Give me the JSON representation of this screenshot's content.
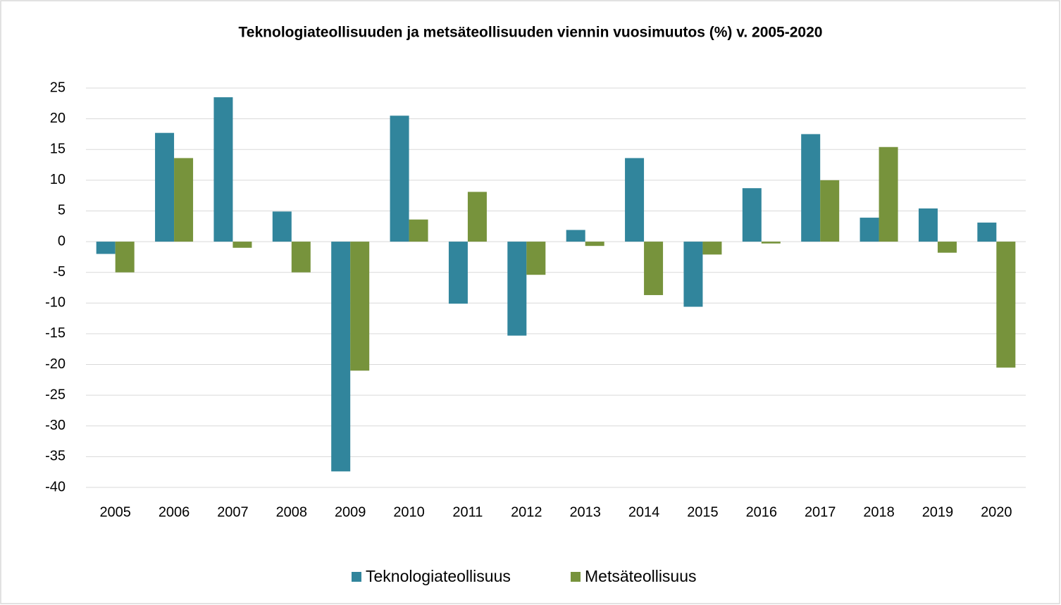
{
  "chart_data": {
    "type": "bar",
    "title": "Teknologiateollisuuden ja metsäteollisuuden viennin vuosimuutos (%) v. 2005-2020",
    "categories": [
      "2005",
      "2006",
      "2007",
      "2008",
      "2009",
      "2010",
      "2011",
      "2012",
      "2013",
      "2014",
      "2015",
      "2016",
      "2017",
      "2018",
      "2019",
      "2020"
    ],
    "series": [
      {
        "name": "Teknologiateollisuus",
        "color": "#31859c",
        "values": [
          -2.0,
          17.7,
          23.5,
          4.9,
          -37.4,
          20.5,
          -10.1,
          -15.3,
          1.9,
          13.6,
          -10.6,
          8.7,
          17.5,
          3.9,
          5.4,
          3.1
        ]
      },
      {
        "name": "Metsäteollisuus",
        "color": "#77933c",
        "values": [
          -5.0,
          13.6,
          -1.0,
          -5.0,
          -21.0,
          3.6,
          8.1,
          -5.4,
          -0.7,
          -8.7,
          -2.1,
          -0.3,
          10.0,
          15.4,
          -1.8,
          -20.5
        ]
      }
    ],
    "ylim": [
      -40,
      25
    ],
    "yticks": [
      -40,
      -35,
      -30,
      -25,
      -20,
      -15,
      -10,
      -5,
      0,
      5,
      10,
      15,
      20,
      25
    ],
    "grid": true,
    "legend": "bottom"
  }
}
